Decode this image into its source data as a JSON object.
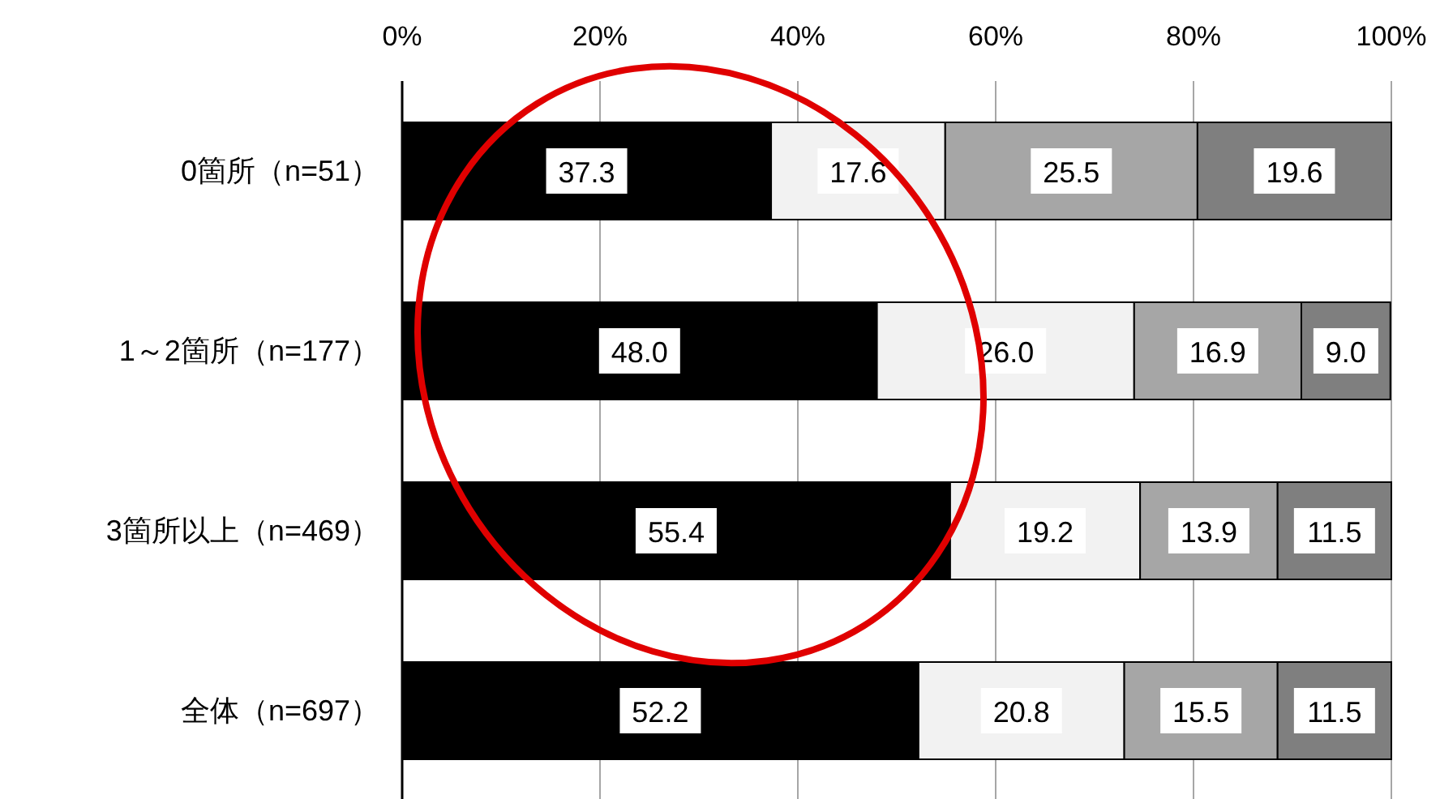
{
  "chart_data": {
    "type": "bar",
    "orientation": "horizontal",
    "stacked": true,
    "categories": [
      "0箇所（n=51）",
      "1～2箇所（n=177）",
      "3箇所以上（n=469）",
      "全体（n=697）"
    ],
    "series": [
      {
        "color": "#000000",
        "values": [
          37.3,
          48.0,
          55.4,
          52.2
        ],
        "value_labels": [
          "37.3",
          "48.0",
          "55.4",
          "52.2"
        ]
      },
      {
        "color": "#f2f2f2",
        "values": [
          17.6,
          26.0,
          19.2,
          20.8
        ],
        "value_labels": [
          "17.6",
          "26.0",
          "19.2",
          "20.8"
        ]
      },
      {
        "color": "#a6a6a6",
        "values": [
          25.5,
          16.9,
          13.9,
          15.5
        ],
        "value_labels": [
          "25.5",
          "16.9",
          "13.9",
          "15.5"
        ]
      },
      {
        "color": "#7f7f7f",
        "values": [
          19.6,
          9.0,
          11.5,
          11.5
        ],
        "value_labels": [
          "19.6",
          "9.0",
          "11.5",
          "11.5"
        ]
      }
    ],
    "xlim": [
      0,
      100
    ],
    "xticks": [
      {
        "value": 0,
        "label": "0%"
      },
      {
        "value": 20,
        "label": "20%"
      },
      {
        "value": 40,
        "label": "40%"
      },
      {
        "value": 60,
        "label": "60%"
      },
      {
        "value": 80,
        "label": "80%"
      },
      {
        "value": 100,
        "label": "100%"
      }
    ],
    "grid": "x"
  }
}
